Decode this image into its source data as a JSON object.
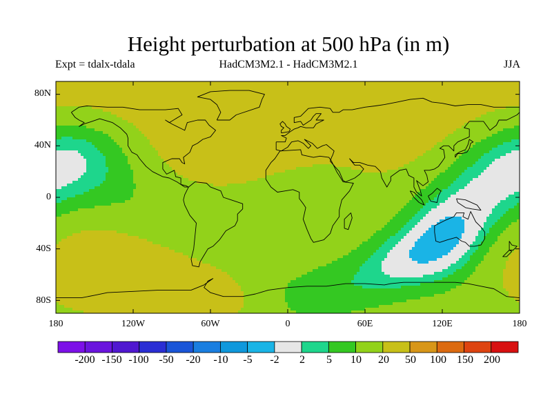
{
  "title": "Height perturbation at 500 hPa (in m)",
  "experiment": "Expt = tdalx-tdala",
  "models": "HadCM3M2.1 - HadCM3M2.1",
  "season": "JJA",
  "axes": {
    "y_ticks": [
      {
        "value": 80,
        "label": "80N"
      },
      {
        "value": 40,
        "label": "40N"
      },
      {
        "value": 0,
        "label": "0"
      },
      {
        "value": -40,
        "label": "40S"
      },
      {
        "value": -80,
        "label": "80S"
      }
    ],
    "x_ticks": [
      {
        "value": -180,
        "label": "180"
      },
      {
        "value": -120,
        "label": "120W"
      },
      {
        "value": -60,
        "label": "60W"
      },
      {
        "value": 0,
        "label": "0"
      },
      {
        "value": 60,
        "label": "60E"
      },
      {
        "value": 120,
        "label": "120E"
      },
      {
        "value": 180,
        "label": "180"
      }
    ],
    "lon_range": [
      -180,
      180
    ],
    "lat_range": [
      -90,
      90
    ]
  },
  "colorbar": {
    "labels": [
      "-200",
      "-150",
      "-100",
      "-50",
      "-20",
      "-10",
      "-5",
      "-2",
      "2",
      "5",
      "10",
      "20",
      "50",
      "100",
      "150",
      "200"
    ],
    "colors": [
      "#7c10e8",
      "#6a14de",
      "#5018d0",
      "#2a2ed4",
      "#1a55d8",
      "#1a7ee0",
      "#0f98dc",
      "#1ab4e6",
      "#e6e6e6",
      "#1ed68c",
      "#34c822",
      "#92d21a",
      "#c8c018",
      "#d89618",
      "#dc6a10",
      "#de4410",
      "#d81010"
    ]
  },
  "chart_data": {
    "type": "map",
    "variable": "500 hPa geopotential height perturbation",
    "units": "m",
    "projection": "equirectangular",
    "lon_range": [
      -180,
      180
    ],
    "lat_range": [
      -90,
      90
    ],
    "levels": [
      -200,
      -150,
      -100,
      -50,
      -20,
      -10,
      -5,
      -2,
      2,
      5,
      10,
      20,
      50,
      100,
      150,
      200
    ],
    "anomalies": [
      {
        "name": "n-atlantic-high",
        "lon": -40,
        "lat": 52,
        "peak": 24
      },
      {
        "name": "n-canada-low",
        "lon": -90,
        "lat": 60,
        "peak": -13
      },
      {
        "name": "great-lakes-high",
        "lon": -78,
        "lat": 45,
        "peak": 19
      },
      {
        "name": "arctic-canada-high",
        "lon": -125,
        "lat": 82,
        "peak": 11
      },
      {
        "name": "arctic-siberia-high",
        "lon": 150,
        "lat": 80,
        "peak": 13
      },
      {
        "name": "alaska-low",
        "lon": -148,
        "lat": 63,
        "peak": -9
      },
      {
        "name": "n-pacific-low",
        "lon": 170,
        "lat": 45,
        "peak": -11
      },
      {
        "name": "n-pacific-high",
        "lon": -160,
        "lat": 42,
        "peak": 7
      },
      {
        "name": "siberia-high",
        "lon": 80,
        "lat": 60,
        "peak": 13
      },
      {
        "name": "w-europe-high",
        "lon": 20,
        "lat": 60,
        "peak": 10
      },
      {
        "name": "e-asia-high",
        "lon": 110,
        "lat": 38,
        "peak": 7
      },
      {
        "name": "s-pacific-high",
        "lon": -155,
        "lat": -60,
        "peak": 28
      },
      {
        "name": "s-pacific-low",
        "lon": -145,
        "lat": -35,
        "peak": -9
      },
      {
        "name": "se-pacific-high",
        "lon": -110,
        "lat": -10,
        "peak": 6
      },
      {
        "name": "s-atlantic-high",
        "lon": -25,
        "lat": -60,
        "peak": 17
      },
      {
        "name": "s-indian-low",
        "lon": 130,
        "lat": -57,
        "peak": -32
      },
      {
        "name": "s-africa-high",
        "lon": 50,
        "lat": -35,
        "peak": 13
      },
      {
        "name": "s-indian-high",
        "lon": 80,
        "lat": -12,
        "peak": 7
      },
      {
        "name": "tasman-high",
        "lon": 180,
        "lat": -62,
        "peak": 30
      },
      {
        "name": "antarctic-low",
        "lon": 30,
        "lat": -70,
        "peak": -7
      },
      {
        "name": "w-antarctic-low",
        "lon": -80,
        "lat": -75,
        "peak": -6
      }
    ]
  }
}
